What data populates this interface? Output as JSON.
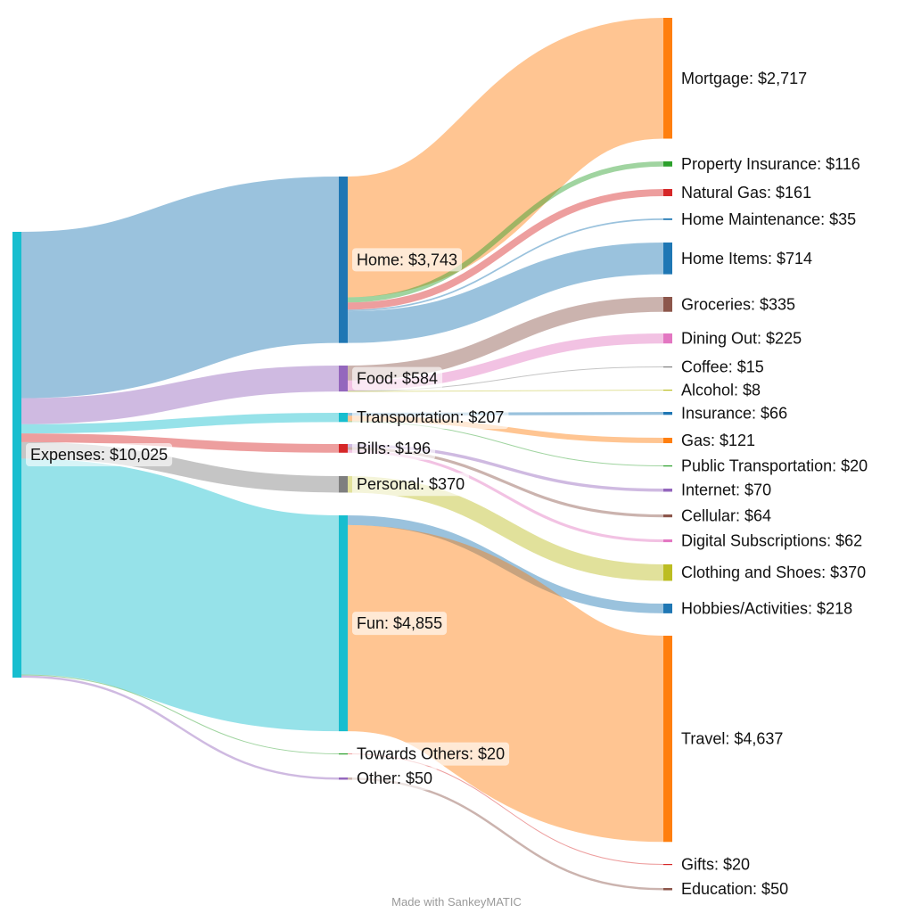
{
  "footer": "Made with SankeyMATIC",
  "colors": {
    "expenses": "#17becf",
    "home": "#1f77b4",
    "food": "#9467bd",
    "transportation": "#17becf",
    "bills": "#d62728",
    "personal": "#7f7f7f",
    "fun": "#17becf",
    "towards_others": "#2ca02c",
    "other": "#9467bd",
    "mortgage": "#ff7f0e",
    "property_insurance": "#2ca02c",
    "natural_gas": "#d62728",
    "home_maintenance": "#1f77b4",
    "home_items": "#1f77b4",
    "groceries": "#8c564b",
    "dining_out": "#e377c2",
    "coffee": "#7f7f7f",
    "alcohol": "#bcbd22",
    "insurance": "#1f77b4",
    "gas": "#ff7f0e",
    "public_transportation": "#2ca02c",
    "internet": "#9467bd",
    "cellular": "#8c564b",
    "digital_subscriptions": "#e377c2",
    "clothing": "#bcbd22",
    "hobbies": "#1f77b4",
    "travel": "#ff7f0e",
    "gifts": "#d62728",
    "education": "#8c564b"
  },
  "chart_data": {
    "type": "sankey",
    "nodes": [
      {
        "id": "expenses",
        "label": "Expenses: $10,025",
        "value": 10025
      },
      {
        "id": "home",
        "label": "Home: $3,743",
        "value": 3743
      },
      {
        "id": "food",
        "label": "Food: $584",
        "value": 584
      },
      {
        "id": "transportation",
        "label": "Transportation: $207",
        "value": 207
      },
      {
        "id": "bills",
        "label": "Bills: $196",
        "value": 196
      },
      {
        "id": "personal",
        "label": "Personal: $370",
        "value": 370
      },
      {
        "id": "fun",
        "label": "Fun: $4,855",
        "value": 4855
      },
      {
        "id": "towards_others",
        "label": "Towards Others: $20",
        "value": 20
      },
      {
        "id": "other",
        "label": "Other: $50",
        "value": 50
      },
      {
        "id": "mortgage",
        "label": "Mortgage: $2,717",
        "value": 2717
      },
      {
        "id": "property_insurance",
        "label": "Property Insurance: $116",
        "value": 116
      },
      {
        "id": "natural_gas",
        "label": "Natural Gas: $161",
        "value": 161
      },
      {
        "id": "home_maintenance",
        "label": "Home Maintenance: $35",
        "value": 35
      },
      {
        "id": "home_items",
        "label": "Home Items: $714",
        "value": 714
      },
      {
        "id": "groceries",
        "label": "Groceries: $335",
        "value": 335
      },
      {
        "id": "dining_out",
        "label": "Dining Out: $225",
        "value": 225
      },
      {
        "id": "coffee",
        "label": "Coffee: $15",
        "value": 15
      },
      {
        "id": "alcohol",
        "label": "Alcohol: $8",
        "value": 8
      },
      {
        "id": "insurance",
        "label": "Insurance: $66",
        "value": 66
      },
      {
        "id": "gas",
        "label": "Gas: $121",
        "value": 121
      },
      {
        "id": "public_transportation",
        "label": "Public Transportation: $20",
        "value": 20
      },
      {
        "id": "internet",
        "label": "Internet: $70",
        "value": 70
      },
      {
        "id": "cellular",
        "label": "Cellular: $64",
        "value": 64
      },
      {
        "id": "digital_subscriptions",
        "label": "Digital Subscriptions: $62",
        "value": 62
      },
      {
        "id": "clothing",
        "label": "Clothing and Shoes: $370",
        "value": 370
      },
      {
        "id": "hobbies",
        "label": "Hobbies/Activities: $218",
        "value": 218
      },
      {
        "id": "travel",
        "label": "Travel: $4,637",
        "value": 4637
      },
      {
        "id": "gifts",
        "label": "Gifts: $20",
        "value": 20
      },
      {
        "id": "education",
        "label": "Education: $50",
        "value": 50
      }
    ],
    "links": [
      {
        "source": "expenses",
        "target": "home",
        "value": 3743
      },
      {
        "source": "expenses",
        "target": "food",
        "value": 584
      },
      {
        "source": "expenses",
        "target": "transportation",
        "value": 207
      },
      {
        "source": "expenses",
        "target": "bills",
        "value": 196
      },
      {
        "source": "expenses",
        "target": "personal",
        "value": 370
      },
      {
        "source": "expenses",
        "target": "fun",
        "value": 4855
      },
      {
        "source": "expenses",
        "target": "towards_others",
        "value": 20
      },
      {
        "source": "expenses",
        "target": "other",
        "value": 50
      },
      {
        "source": "home",
        "target": "mortgage",
        "value": 2717
      },
      {
        "source": "home",
        "target": "property_insurance",
        "value": 116
      },
      {
        "source": "home",
        "target": "natural_gas",
        "value": 161
      },
      {
        "source": "home",
        "target": "home_maintenance",
        "value": 35
      },
      {
        "source": "home",
        "target": "home_items",
        "value": 714
      },
      {
        "source": "food",
        "target": "groceries",
        "value": 335
      },
      {
        "source": "food",
        "target": "dining_out",
        "value": 225
      },
      {
        "source": "food",
        "target": "coffee",
        "value": 15
      },
      {
        "source": "food",
        "target": "alcohol",
        "value": 8
      },
      {
        "source": "transportation",
        "target": "insurance",
        "value": 66
      },
      {
        "source": "transportation",
        "target": "gas",
        "value": 121
      },
      {
        "source": "transportation",
        "target": "public_transportation",
        "value": 20
      },
      {
        "source": "bills",
        "target": "internet",
        "value": 70
      },
      {
        "source": "bills",
        "target": "cellular",
        "value": 64
      },
      {
        "source": "bills",
        "target": "digital_subscriptions",
        "value": 62
      },
      {
        "source": "personal",
        "target": "clothing",
        "value": 370
      },
      {
        "source": "fun",
        "target": "hobbies",
        "value": 218
      },
      {
        "source": "fun",
        "target": "travel",
        "value": 4637
      },
      {
        "source": "towards_others",
        "target": "gifts",
        "value": 20
      },
      {
        "source": "other",
        "target": "education",
        "value": 50
      }
    ]
  }
}
